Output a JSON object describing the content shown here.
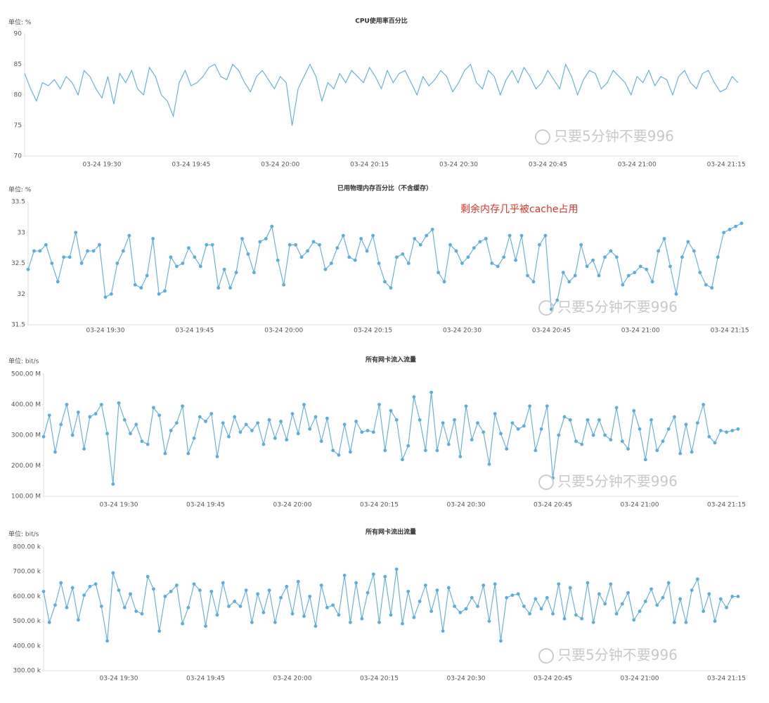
{
  "watermark": "只要5分钟不要996",
  "chart_data": [
    {
      "type": "line",
      "title": "CPU使用率百分比",
      "unit_label": "单位: %",
      "color": "#5aaedc",
      "markers": false,
      "grid": false,
      "ylim": [
        70,
        90
      ],
      "yticks": [
        90,
        85,
        80,
        75,
        70
      ],
      "categories": [
        null,
        null,
        null,
        null,
        null,
        null,
        null,
        null,
        null,
        null,
        null,
        null,
        null,
        "03-24 19:30",
        null,
        null,
        null,
        null,
        null,
        null,
        null,
        null,
        null,
        null,
        null,
        null,
        null,
        null,
        "03-24 19:45",
        null,
        null,
        null,
        null,
        null,
        null,
        null,
        null,
        null,
        null,
        null,
        null,
        null,
        null,
        "03-24 20:00",
        null,
        null,
        null,
        null,
        null,
        null,
        null,
        null,
        null,
        null,
        null,
        null,
        null,
        null,
        "03-24 20:15",
        null,
        null,
        null,
        null,
        null,
        null,
        null,
        null,
        null,
        null,
        null,
        null,
        null,
        null,
        "03-24 20:30",
        null,
        null,
        null,
        null,
        null,
        null,
        null,
        null,
        null,
        null,
        null,
        null,
        null,
        null,
        "03-24 20:45",
        null,
        null,
        null,
        null,
        null,
        null,
        null,
        null,
        null,
        null,
        null,
        null,
        null,
        null,
        "03-24 21:00",
        null,
        null,
        null,
        null,
        null,
        null,
        null,
        null,
        null,
        null,
        null,
        null,
        null,
        null,
        "03-24 21:15",
        null,
        null
      ],
      "values": [
        83.5,
        81,
        79,
        82,
        81.5,
        82.5,
        81,
        83,
        82,
        80,
        84,
        83,
        81,
        79.5,
        83,
        78.5,
        83.5,
        82,
        84,
        81,
        80,
        84.5,
        83,
        80,
        79,
        76.5,
        82,
        84,
        81.5,
        82,
        83,
        84.5,
        85,
        83,
        82.5,
        85,
        84,
        82,
        80.5,
        83,
        84,
        82.5,
        81,
        83,
        82,
        75,
        81,
        83,
        85,
        83,
        79,
        82,
        81,
        83.5,
        82,
        84,
        83,
        82,
        84.5,
        83,
        81,
        84,
        82,
        83.5,
        84,
        82,
        80,
        83,
        81.5,
        82.5,
        84,
        83,
        80.5,
        82,
        84,
        85,
        82,
        81,
        84,
        83,
        80,
        82.5,
        84,
        82,
        84.5,
        83,
        81,
        82,
        84,
        82.5,
        81,
        85,
        83,
        80,
        82.5,
        84,
        83.5,
        81,
        82,
        84,
        83,
        82,
        80,
        83,
        82,
        84,
        81.5,
        83,
        82.5,
        80,
        83,
        84,
        82,
        81,
        83.5,
        84,
        82,
        80.5,
        81,
        83,
        82
      ]
    },
    {
      "type": "line",
      "title": "已用物理内存百分比（不含缓存）",
      "unit_label": "单位: %",
      "color": "#5aaedc",
      "markers": true,
      "grid": false,
      "annotation": "剩余内存几乎被cache占用",
      "ylim": [
        31.5,
        33.5
      ],
      "yticks": [
        33.5,
        33,
        32.5,
        32,
        31.5
      ],
      "categories": [
        null,
        null,
        null,
        null,
        null,
        null,
        null,
        null,
        null,
        null,
        null,
        null,
        null,
        "03-24 19:30",
        null,
        null,
        null,
        null,
        null,
        null,
        null,
        null,
        null,
        null,
        null,
        null,
        null,
        null,
        "03-24 19:45",
        null,
        null,
        null,
        null,
        null,
        null,
        null,
        null,
        null,
        null,
        null,
        null,
        null,
        null,
        "03-24 20:00",
        null,
        null,
        null,
        null,
        null,
        null,
        null,
        null,
        null,
        null,
        null,
        null,
        null,
        null,
        "03-24 20:15",
        null,
        null,
        null,
        null,
        null,
        null,
        null,
        null,
        null,
        null,
        null,
        null,
        null,
        null,
        "03-24 20:30",
        null,
        null,
        null,
        null,
        null,
        null,
        null,
        null,
        null,
        null,
        null,
        null,
        null,
        null,
        "03-24 20:45",
        null,
        null,
        null,
        null,
        null,
        null,
        null,
        null,
        null,
        null,
        null,
        null,
        null,
        null,
        "03-24 21:00",
        null,
        null,
        null,
        null,
        null,
        null,
        null,
        null,
        null,
        null,
        null,
        null,
        null,
        null,
        "03-24 21:15",
        null,
        null
      ],
      "values": [
        32.4,
        32.7,
        32.7,
        32.8,
        32.5,
        32.2,
        32.6,
        32.6,
        33,
        32.5,
        32.7,
        32.7,
        32.8,
        31.95,
        32,
        32.5,
        32.7,
        32.95,
        32.15,
        32.1,
        32.3,
        32.9,
        32,
        32.05,
        32.6,
        32.45,
        32.5,
        32.75,
        32.6,
        32.45,
        32.8,
        32.8,
        32.1,
        32.4,
        32.1,
        32.35,
        32.9,
        32.65,
        32.35,
        32.85,
        32.9,
        33.1,
        32.55,
        32.15,
        32.8,
        32.8,
        32.6,
        32.7,
        32.85,
        32.8,
        32.4,
        32.5,
        32.75,
        32.95,
        32.6,
        32.55,
        32.9,
        32.7,
        32.95,
        32.5,
        32.2,
        32.1,
        32.6,
        32.65,
        32.5,
        32.9,
        32.8,
        32.95,
        33.05,
        32.35,
        32.2,
        32.8,
        32.7,
        32.5,
        32.6,
        32.75,
        32.85,
        32.9,
        32.5,
        32.45,
        32.6,
        32.95,
        32.55,
        32.95,
        32.3,
        32.2,
        32.8,
        32.95,
        31.75,
        31.9,
        32.35,
        32.2,
        32.3,
        32.8,
        32.45,
        32.55,
        32.3,
        32.6,
        32.7,
        32.6,
        32.15,
        32.3,
        32.35,
        32.45,
        32.4,
        32.2,
        32.7,
        32.9,
        32.45,
        32.0,
        32.6,
        32.85,
        32.7,
        32.35,
        32.15,
        32.1,
        32.6,
        33,
        33.05,
        33.1,
        33.15
      ]
    },
    {
      "type": "line",
      "title": "所有网卡流入流量",
      "unit_label": "单位: bit/s",
      "color": "#5aaedc",
      "markers": true,
      "grid": false,
      "ylim": [
        100000000.0,
        500000000.0
      ],
      "yticks": [
        {
          "value": 500000000.0,
          "label": "500.00 M"
        },
        {
          "value": 400000000.0,
          "label": "400.00 M"
        },
        {
          "value": 300000000.0,
          "label": "300.00 M"
        },
        {
          "value": 200000000.0,
          "label": "200.00 M"
        },
        {
          "value": 100000000.0,
          "label": "100.00 M"
        }
      ],
      "categories": [
        null,
        null,
        null,
        null,
        null,
        null,
        null,
        null,
        null,
        null,
        null,
        null,
        null,
        "03-24 19:30",
        null,
        null,
        null,
        null,
        null,
        null,
        null,
        null,
        null,
        null,
        null,
        null,
        null,
        null,
        "03-24 19:45",
        null,
        null,
        null,
        null,
        null,
        null,
        null,
        null,
        null,
        null,
        null,
        null,
        null,
        null,
        "03-24 20:00",
        null,
        null,
        null,
        null,
        null,
        null,
        null,
        null,
        null,
        null,
        null,
        null,
        null,
        null,
        "03-24 20:15",
        null,
        null,
        null,
        null,
        null,
        null,
        null,
        null,
        null,
        null,
        null,
        null,
        null,
        null,
        "03-24 20:30",
        null,
        null,
        null,
        null,
        null,
        null,
        null,
        null,
        null,
        null,
        null,
        null,
        null,
        null,
        "03-24 20:45",
        null,
        null,
        null,
        null,
        null,
        null,
        null,
        null,
        null,
        null,
        null,
        null,
        null,
        null,
        "03-24 21:00",
        null,
        null,
        null,
        null,
        null,
        null,
        null,
        null,
        null,
        null,
        null,
        null,
        null,
        null,
        "03-24 21:15",
        null,
        null
      ],
      "values": [
        295000000.0,
        365000000.0,
        245000000.0,
        335000000.0,
        400000000.0,
        300000000.0,
        375000000.0,
        255000000.0,
        360000000.0,
        370000000.0,
        400000000.0,
        305000000.0,
        140000000.0,
        405000000.0,
        350000000.0,
        305000000.0,
        335000000.0,
        280000000.0,
        270000000.0,
        390000000.0,
        365000000.0,
        240000000.0,
        315000000.0,
        340000000.0,
        395000000.0,
        240000000.0,
        290000000.0,
        360000000.0,
        345000000.0,
        370000000.0,
        230000000.0,
        340000000.0,
        295000000.0,
        360000000.0,
        310000000.0,
        335000000.0,
        315000000.0,
        340000000.0,
        270000000.0,
        350000000.0,
        290000000.0,
        345000000.0,
        285000000.0,
        370000000.0,
        305000000.0,
        400000000.0,
        320000000.0,
        360000000.0,
        280000000.0,
        355000000.0,
        250000000.0,
        235000000.0,
        335000000.0,
        245000000.0,
        345000000.0,
        310000000.0,
        315000000.0,
        310000000.0,
        400000000.0,
        250000000.0,
        380000000.0,
        350000000.0,
        220000000.0,
        265000000.0,
        425000000.0,
        350000000.0,
        250000000.0,
        440000000.0,
        250000000.0,
        340000000.0,
        270000000.0,
        350000000.0,
        230000000.0,
        395000000.0,
        285000000.0,
        340000000.0,
        310000000.0,
        205000000.0,
        370000000.0,
        305000000.0,
        255000000.0,
        340000000.0,
        320000000.0,
        330000000.0,
        395000000.0,
        250000000.0,
        320000000.0,
        395000000.0,
        160000000.0,
        300000000.0,
        360000000.0,
        350000000.0,
        280000000.0,
        270000000.0,
        350000000.0,
        300000000.0,
        350000000.0,
        300000000.0,
        285000000.0,
        390000000.0,
        280000000.0,
        255000000.0,
        380000000.0,
        320000000.0,
        220000000.0,
        350000000.0,
        250000000.0,
        280000000.0,
        320000000.0,
        360000000.0,
        240000000.0,
        335000000.0,
        245000000.0,
        340000000.0,
        400000000.0,
        295000000.0,
        275000000.0,
        315000000.0,
        310000000.0,
        315000000.0,
        320000000.0
      ]
    },
    {
      "type": "line",
      "title": "所有网卡流出流量",
      "unit_label": "单位: bit/s",
      "color": "#5aaedc",
      "markers": true,
      "grid": false,
      "ylim": [
        300000.0,
        800000.0
      ],
      "yticks": [
        {
          "value": 800000.0,
          "label": "800.00 k"
        },
        {
          "value": 700000.0,
          "label": "700.00 k"
        },
        {
          "value": 600000.0,
          "label": "600.00 k"
        },
        {
          "value": 500000.0,
          "label": "500.00 k"
        },
        {
          "value": 400000.0,
          "label": "400.00 k"
        },
        {
          "value": 300000.0,
          "label": "300.00 k"
        }
      ],
      "categories": [
        null,
        null,
        null,
        null,
        null,
        null,
        null,
        null,
        null,
        null,
        null,
        null,
        null,
        "03-24 19:30",
        null,
        null,
        null,
        null,
        null,
        null,
        null,
        null,
        null,
        null,
        null,
        null,
        null,
        null,
        "03-24 19:45",
        null,
        null,
        null,
        null,
        null,
        null,
        null,
        null,
        null,
        null,
        null,
        null,
        null,
        null,
        "03-24 20:00",
        null,
        null,
        null,
        null,
        null,
        null,
        null,
        null,
        null,
        null,
        null,
        null,
        null,
        null,
        "03-24 20:15",
        null,
        null,
        null,
        null,
        null,
        null,
        null,
        null,
        null,
        null,
        null,
        null,
        null,
        null,
        "03-24 20:30",
        null,
        null,
        null,
        null,
        null,
        null,
        null,
        null,
        null,
        null,
        null,
        null,
        null,
        null,
        "03-24 20:45",
        null,
        null,
        null,
        null,
        null,
        null,
        null,
        null,
        null,
        null,
        null,
        null,
        null,
        null,
        "03-24 21:00",
        null,
        null,
        null,
        null,
        null,
        null,
        null,
        null,
        null,
        null,
        null,
        null,
        null,
        null,
        "03-24 21:15",
        null,
        null
      ],
      "values": [
        620000.0,
        495000.0,
        565000.0,
        655000.0,
        555000.0,
        635000.0,
        505000.0,
        605000.0,
        640000.0,
        650000.0,
        560000.0,
        420000.0,
        695000.0,
        625000.0,
        555000.0,
        610000.0,
        540000.0,
        530000.0,
        680000.0,
        630000.0,
        460000.0,
        600000.0,
        620000.0,
        645000.0,
        490000.0,
        555000.0,
        650000.0,
        625000.0,
        480000.0,
        620000.0,
        525000.0,
        655000.0,
        560000.0,
        580000.0,
        560000.0,
        625000.0,
        495000.0,
        610000.0,
        535000.0,
        625000.0,
        495000.0,
        595000.0,
        640000.0,
        530000.0,
        660000.0,
        520000.0,
        600000.0,
        480000.0,
        645000.0,
        555000.0,
        565000.0,
        525000.0,
        685000.0,
        495000.0,
        655000.0,
        510000.0,
        615000.0,
        690000.0,
        495000.0,
        680000.0,
        525000.0,
        710000.0,
        490000.0,
        620000.0,
        515000.0,
        580000.0,
        645000.0,
        540000.0,
        625000.0,
        460000.0,
        635000.0,
        560000.0,
        535000.0,
        550000.0,
        595000.0,
        560000.0,
        645000.0,
        500000.0,
        650000.0,
        420000.0,
        595000.0,
        605000.0,
        610000.0,
        560000.0,
        530000.0,
        590000.0,
        550000.0,
        595000.0,
        530000.0,
        650000.0,
        510000.0,
        635000.0,
        525000.0,
        510000.0,
        655000.0,
        495000.0,
        610000.0,
        570000.0,
        650000.0,
        530000.0,
        570000.0,
        615000.0,
        505000.0,
        540000.0,
        580000.0,
        630000.0,
        565000.0,
        595000.0,
        655000.0,
        495000.0,
        590000.0,
        495000.0,
        625000.0,
        670000.0,
        540000.0,
        610000.0,
        500000.0,
        590000.0,
        555000.0,
        600000.0,
        600000.0
      ]
    }
  ]
}
